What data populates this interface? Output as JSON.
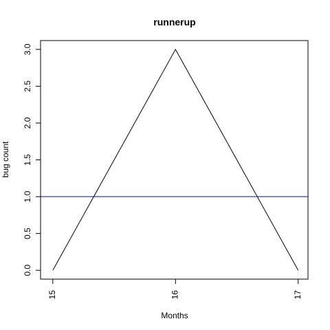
{
  "chart_data": {
    "type": "line",
    "title": "runnerup",
    "xlabel": "Months",
    "ylabel": "bug count",
    "x": [
      15,
      16,
      17
    ],
    "series": [
      {
        "values": [
          0,
          3,
          0
        ],
        "color": "#000000"
      }
    ],
    "reference_lines": [
      {
        "axis": "y",
        "value": 1.0,
        "color": "#0000cd"
      }
    ],
    "x_ticks": [
      15,
      16,
      17
    ],
    "x_tick_labels": [
      "15",
      "16",
      "17"
    ],
    "y_ticks": [
      0,
      0.5,
      1,
      1.5,
      2,
      2.5,
      3
    ],
    "y_tick_labels": [
      "0.0",
      "0.5",
      "1.0",
      "1.5",
      "2.0",
      "2.5",
      "3.0"
    ],
    "xlim": [
      14.9,
      17.08
    ],
    "ylim": [
      -0.12,
      3.12
    ],
    "grid": false,
    "legend": "none",
    "colors": {
      "background": "#ffffff",
      "axis": "#000000"
    }
  }
}
